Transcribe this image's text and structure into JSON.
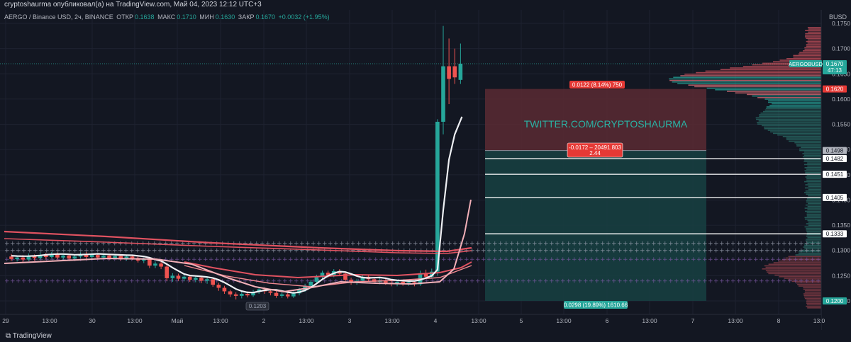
{
  "header": {
    "publish_line": "cryptoshaurma опубликовал(а) на TradingView.com, Май 04, 2023 12:12 UTC+3"
  },
  "symbol": {
    "name": "AERGO / Binance USD, 2ч, BINANCE",
    "open_label": "ОТКР",
    "open": "0.1638",
    "high_label": "МАКС",
    "high": "0.1710",
    "low_label": "МИН",
    "low": "0.1630",
    "close_label": "ЗАКР",
    "close": "0.1670",
    "change": "+0.0032 (+1.95%)"
  },
  "axis": {
    "unit": "BUSD",
    "price_ticks": [
      "0.1750",
      "0.1700",
      "0.1650",
      "0.1600",
      "0.1550",
      "0.1500",
      "0.1450",
      "0.1400",
      "0.1350",
      "0.1300",
      "0.1250",
      "0.1200"
    ],
    "time_ticks": [
      "29",
      "13:00",
      "30",
      "13:00",
      "Май",
      "13:00",
      "2",
      "13:00",
      "3",
      "13:00",
      "4",
      "13:00",
      "5",
      "13:00",
      "6",
      "13:00",
      "7",
      "13:00",
      "8",
      "13:0"
    ]
  },
  "price_tags": {
    "symbol_tag": "AERGOBUSD",
    "current": "0.1670",
    "countdown": "47:13",
    "red_level": "0.1620",
    "entry": "0.1498",
    "l1": "0.1482",
    "l2": "0.1451",
    "l3": "0.1405",
    "l4": "0.1333",
    "target": "0.1200"
  },
  "position": {
    "stop_label": "0.0122 (8.14%) 750",
    "mid_label_1": "-0.0172 – 20491.803",
    "mid_label_2": "2.44",
    "target_label": "0.0298 (19.89%) 1610.66",
    "watermark": "TWITTER.COM/CRYPTOSHAURMA",
    "low_tag": "0.1203"
  },
  "colors": {
    "bg": "#131722",
    "up": "#26a69a",
    "down": "#ef5350",
    "stop_zone": "#5b2a33",
    "target_zone": "#173e40"
  },
  "footer": {
    "brand": "TradingView"
  },
  "chart_data": {
    "type": "candlestick",
    "ylim": [
      0.118,
      0.176
    ],
    "candles": [
      {
        "x": 0,
        "o": 0.1288,
        "c": 0.1283,
        "h": 0.1293,
        "l": 0.1279
      },
      {
        "x": 1,
        "o": 0.1283,
        "c": 0.1286,
        "h": 0.129,
        "l": 0.1278
      },
      {
        "x": 2,
        "o": 0.1286,
        "c": 0.1282,
        "h": 0.1291,
        "l": 0.1277
      },
      {
        "x": 3,
        "o": 0.1282,
        "c": 0.1289,
        "h": 0.1294,
        "l": 0.1279
      },
      {
        "x": 4,
        "o": 0.1289,
        "c": 0.1285,
        "h": 0.1292,
        "l": 0.128
      },
      {
        "x": 5,
        "o": 0.1285,
        "c": 0.1291,
        "h": 0.1296,
        "l": 0.1282
      },
      {
        "x": 6,
        "o": 0.1291,
        "c": 0.1287,
        "h": 0.1295,
        "l": 0.1283
      },
      {
        "x": 7,
        "o": 0.1287,
        "c": 0.1292,
        "h": 0.1297,
        "l": 0.1284
      },
      {
        "x": 8,
        "o": 0.1292,
        "c": 0.1286,
        "h": 0.1296,
        "l": 0.1282
      },
      {
        "x": 9,
        "o": 0.1286,
        "c": 0.129,
        "h": 0.1294,
        "l": 0.1281
      },
      {
        "x": 10,
        "o": 0.129,
        "c": 0.1284,
        "h": 0.1293,
        "l": 0.128
      },
      {
        "x": 11,
        "o": 0.1284,
        "c": 0.1288,
        "h": 0.1292,
        "l": 0.128
      },
      {
        "x": 12,
        "o": 0.1288,
        "c": 0.1292,
        "h": 0.1296,
        "l": 0.1285
      },
      {
        "x": 13,
        "o": 0.1292,
        "c": 0.1287,
        "h": 0.1297,
        "l": 0.1283
      },
      {
        "x": 14,
        "o": 0.1287,
        "c": 0.1291,
        "h": 0.1295,
        "l": 0.1283
      },
      {
        "x": 15,
        "o": 0.1291,
        "c": 0.1286,
        "h": 0.1294,
        "l": 0.1282
      },
      {
        "x": 16,
        "o": 0.1286,
        "c": 0.129,
        "h": 0.1293,
        "l": 0.1282
      },
      {
        "x": 17,
        "o": 0.129,
        "c": 0.1285,
        "h": 0.1294,
        "l": 0.1281
      },
      {
        "x": 18,
        "o": 0.1285,
        "c": 0.1289,
        "h": 0.1293,
        "l": 0.1282
      },
      {
        "x": 19,
        "o": 0.1289,
        "c": 0.1284,
        "h": 0.1292,
        "l": 0.128
      },
      {
        "x": 20,
        "o": 0.1284,
        "c": 0.1288,
        "h": 0.1291,
        "l": 0.128
      },
      {
        "x": 21,
        "o": 0.1288,
        "c": 0.1285,
        "h": 0.1291,
        "l": 0.1281
      },
      {
        "x": 22,
        "o": 0.1285,
        "c": 0.128,
        "h": 0.1288,
        "l": 0.1276
      },
      {
        "x": 23,
        "o": 0.128,
        "c": 0.1283,
        "h": 0.1286,
        "l": 0.1275
      },
      {
        "x": 24,
        "o": 0.1283,
        "c": 0.127,
        "h": 0.1287,
        "l": 0.1265
      },
      {
        "x": 25,
        "o": 0.127,
        "c": 0.1274,
        "h": 0.1278,
        "l": 0.1265
      },
      {
        "x": 26,
        "o": 0.1274,
        "c": 0.1268,
        "h": 0.1278,
        "l": 0.1263
      },
      {
        "x": 27,
        "o": 0.1268,
        "c": 0.1245,
        "h": 0.1272,
        "l": 0.124
      },
      {
        "x": 28,
        "o": 0.1245,
        "c": 0.125,
        "h": 0.1255,
        "l": 0.1238
      },
      {
        "x": 29,
        "o": 0.125,
        "c": 0.1244,
        "h": 0.1254,
        "l": 0.124
      },
      {
        "x": 30,
        "o": 0.1244,
        "c": 0.1248,
        "h": 0.1252,
        "l": 0.1239
      },
      {
        "x": 31,
        "o": 0.1248,
        "c": 0.1242,
        "h": 0.1251,
        "l": 0.1238
      },
      {
        "x": 32,
        "o": 0.1242,
        "c": 0.1246,
        "h": 0.125,
        "l": 0.1237
      },
      {
        "x": 33,
        "o": 0.1246,
        "c": 0.124,
        "h": 0.1249,
        "l": 0.1235
      },
      {
        "x": 34,
        "o": 0.124,
        "c": 0.1243,
        "h": 0.1247,
        "l": 0.1234
      },
      {
        "x": 35,
        "o": 0.1243,
        "c": 0.1232,
        "h": 0.1246,
        "l": 0.1228
      },
      {
        "x": 36,
        "o": 0.1232,
        "c": 0.1226,
        "h": 0.1236,
        "l": 0.122
      },
      {
        "x": 37,
        "o": 0.1226,
        "c": 0.1219,
        "h": 0.123,
        "l": 0.1214
      },
      {
        "x": 38,
        "o": 0.1219,
        "c": 0.1213,
        "h": 0.1222,
        "l": 0.1208
      },
      {
        "x": 39,
        "o": 0.1213,
        "c": 0.121,
        "h": 0.1217,
        "l": 0.1203
      },
      {
        "x": 40,
        "o": 0.121,
        "c": 0.1214,
        "h": 0.1219,
        "l": 0.1205
      },
      {
        "x": 41,
        "o": 0.1214,
        "c": 0.1211,
        "h": 0.1219,
        "l": 0.1207
      },
      {
        "x": 42,
        "o": 0.1211,
        "c": 0.1218,
        "h": 0.1222,
        "l": 0.1208
      },
      {
        "x": 43,
        "o": 0.1218,
        "c": 0.1223,
        "h": 0.1227,
        "l": 0.1214
      },
      {
        "x": 44,
        "o": 0.1223,
        "c": 0.1219,
        "h": 0.1227,
        "l": 0.1214
      },
      {
        "x": 45,
        "o": 0.1219,
        "c": 0.1216,
        "h": 0.1223,
        "l": 0.1211
      },
      {
        "x": 46,
        "o": 0.1216,
        "c": 0.121,
        "h": 0.122,
        "l": 0.1206
      },
      {
        "x": 47,
        "o": 0.121,
        "c": 0.1213,
        "h": 0.1217,
        "l": 0.1206
      },
      {
        "x": 48,
        "o": 0.1213,
        "c": 0.1209,
        "h": 0.1216,
        "l": 0.1205
      },
      {
        "x": 49,
        "o": 0.1209,
        "c": 0.1215,
        "h": 0.1219,
        "l": 0.1206
      },
      {
        "x": 50,
        "o": 0.1215,
        "c": 0.1222,
        "h": 0.1226,
        "l": 0.1211
      },
      {
        "x": 51,
        "o": 0.1222,
        "c": 0.123,
        "h": 0.1234,
        "l": 0.1218
      },
      {
        "x": 52,
        "o": 0.123,
        "c": 0.1238,
        "h": 0.1242,
        "l": 0.1226
      },
      {
        "x": 53,
        "o": 0.1238,
        "c": 0.1248,
        "h": 0.1252,
        "l": 0.1234
      },
      {
        "x": 54,
        "o": 0.1248,
        "c": 0.1256,
        "h": 0.126,
        "l": 0.1244
      },
      {
        "x": 55,
        "o": 0.1256,
        "c": 0.1251,
        "h": 0.126,
        "l": 0.1246
      },
      {
        "x": 56,
        "o": 0.1251,
        "c": 0.1259,
        "h": 0.1263,
        "l": 0.1247
      },
      {
        "x": 57,
        "o": 0.1259,
        "c": 0.1254,
        "h": 0.1263,
        "l": 0.1249
      },
      {
        "x": 58,
        "o": 0.1254,
        "c": 0.1242,
        "h": 0.1258,
        "l": 0.1238
      },
      {
        "x": 59,
        "o": 0.1242,
        "c": 0.1236,
        "h": 0.1246,
        "l": 0.1232
      },
      {
        "x": 60,
        "o": 0.1236,
        "c": 0.124,
        "h": 0.1244,
        "l": 0.1232
      },
      {
        "x": 61,
        "o": 0.124,
        "c": 0.1248,
        "h": 0.1252,
        "l": 0.1236
      },
      {
        "x": 62,
        "o": 0.1248,
        "c": 0.1243,
        "h": 0.1252,
        "l": 0.1238
      },
      {
        "x": 63,
        "o": 0.1243,
        "c": 0.1238,
        "h": 0.1247,
        "l": 0.1234
      },
      {
        "x": 64,
        "o": 0.1238,
        "c": 0.1241,
        "h": 0.1245,
        "l": 0.1233
      },
      {
        "x": 65,
        "o": 0.1241,
        "c": 0.1236,
        "h": 0.1245,
        "l": 0.1232
      },
      {
        "x": 66,
        "o": 0.1236,
        "c": 0.1233,
        "h": 0.124,
        "l": 0.1229
      },
      {
        "x": 67,
        "o": 0.1233,
        "c": 0.1238,
        "h": 0.1242,
        "l": 0.1229
      },
      {
        "x": 68,
        "o": 0.1238,
        "c": 0.1234,
        "h": 0.1242,
        "l": 0.123
      },
      {
        "x": 69,
        "o": 0.1234,
        "c": 0.1237,
        "h": 0.1241,
        "l": 0.123
      },
      {
        "x": 70,
        "o": 0.1237,
        "c": 0.1233,
        "h": 0.124,
        "l": 0.1229
      },
      {
        "x": 71,
        "o": 0.1233,
        "c": 0.1255,
        "h": 0.126,
        "l": 0.123
      },
      {
        "x": 72,
        "o": 0.1255,
        "c": 0.1248,
        "h": 0.1262,
        "l": 0.1243
      },
      {
        "x": 73,
        "o": 0.1248,
        "c": 0.1258,
        "h": 0.1264,
        "l": 0.1244
      },
      {
        "x": 74,
        "o": 0.1258,
        "c": 0.1555,
        "h": 0.156,
        "l": 0.125
      },
      {
        "x": 75,
        "o": 0.1555,
        "c": 0.1665,
        "h": 0.1745,
        "l": 0.153
      },
      {
        "x": 76,
        "o": 0.1665,
        "c": 0.164,
        "h": 0.172,
        "l": 0.159
      },
      {
        "x": 77,
        "o": 0.1665,
        "c": 0.1643,
        "h": 0.17,
        "l": 0.163
      },
      {
        "x": 78,
        "o": 0.1638,
        "c": 0.167,
        "h": 0.171,
        "l": 0.163
      }
    ]
  }
}
